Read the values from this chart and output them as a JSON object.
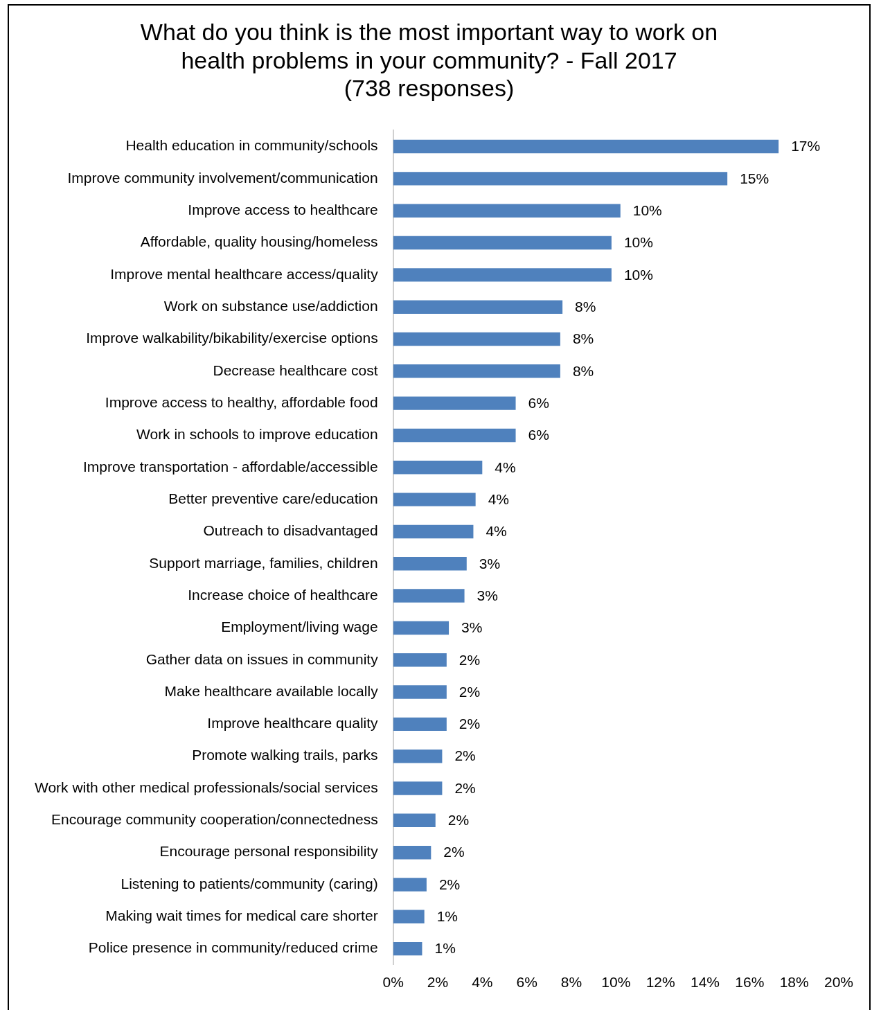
{
  "chart_data": {
    "type": "bar",
    "orientation": "horizontal",
    "title": "What do you think is the most important way to work on\nhealth problems in your community? - Fall 2017\n(738 responses)",
    "categories": [
      "Health education in community/schools",
      "Improve community involvement/communication",
      "Improve access to healthcare",
      "Affordable, quality housing/homeless",
      "Improve mental healthcare access/quality",
      "Work on substance use/addiction",
      "Improve walkability/bikability/exercise options",
      "Decrease healthcare cost",
      "Improve access to healthy, affordable food",
      "Work in schools to improve education",
      "Improve transportation - affordable/accessible",
      "Better preventive care/education",
      "Outreach to disadvantaged",
      "Support marriage, families, children",
      "Increase choice of healthcare",
      "Employment/living wage",
      "Gather data on issues in community",
      "Make healthcare available locally",
      "Improve healthcare quality",
      "Promote walking trails, parks",
      "Work with other medical professionals/social services",
      "Encourage community cooperation/connectedness",
      "Encourage personal responsibility",
      "Listening to patients/community (caring)",
      "Making wait times for medical care shorter",
      "Police presence in community/reduced crime"
    ],
    "values": [
      17.3,
      15.0,
      10.2,
      9.8,
      9.8,
      7.6,
      7.5,
      7.5,
      5.5,
      5.5,
      4.0,
      3.7,
      3.6,
      3.3,
      3.2,
      2.5,
      2.4,
      2.4,
      2.4,
      2.2,
      2.2,
      1.9,
      1.7,
      1.5,
      1.4,
      1.3
    ],
    "value_labels": [
      "17%",
      "15%",
      "10%",
      "10%",
      "10%",
      "8%",
      "8%",
      "8%",
      "6%",
      "6%",
      "4%",
      "4%",
      "4%",
      "3%",
      "3%",
      "3%",
      "2%",
      "2%",
      "2%",
      "2%",
      "2%",
      "2%",
      "2%",
      "2%",
      "1%",
      "1%"
    ],
    "color": "#4f81bd",
    "xlim": [
      0,
      20
    ],
    "xticks": [
      {
        "value": 0,
        "label": "0%"
      },
      {
        "value": 2,
        "label": "2%"
      },
      {
        "value": 4,
        "label": "4%"
      },
      {
        "value": 6,
        "label": "6%"
      },
      {
        "value": 8,
        "label": "8%"
      },
      {
        "value": 10,
        "label": "10%"
      },
      {
        "value": 12,
        "label": "12%"
      },
      {
        "value": 14,
        "label": "14%"
      },
      {
        "value": 16,
        "label": "16%"
      },
      {
        "value": 18,
        "label": "18%"
      },
      {
        "value": 20,
        "label": "20%"
      }
    ],
    "grid": false,
    "legend": false
  }
}
